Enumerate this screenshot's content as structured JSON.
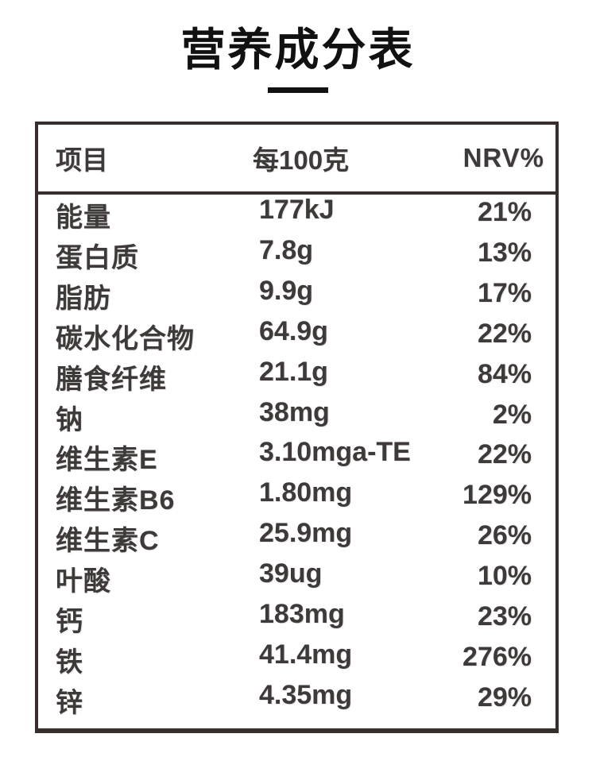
{
  "title": "营养成分表",
  "colors": {
    "text": "#3e3a39",
    "border": "#352e2d",
    "title": "#111111"
  },
  "table": {
    "headers": {
      "item": "项目",
      "per100g": "每100克",
      "nrv": "NRV%"
    },
    "rows": [
      {
        "item": "能量",
        "value": "177kJ",
        "nrv": "21%"
      },
      {
        "item": "蛋白质",
        "value": "7.8g",
        "nrv": "13%"
      },
      {
        "item": "脂肪",
        "value": "9.9g",
        "nrv": "17%"
      },
      {
        "item": "碳水化合物",
        "value": "64.9g",
        "nrv": "22%"
      },
      {
        "item": "膳食纤维",
        "value": "21.1g",
        "nrv": "84%"
      },
      {
        "item": "钠",
        "value": "38mg",
        "nrv": "2%"
      },
      {
        "item": "维生素E",
        "value": "3.10mga-TE",
        "nrv": "22%"
      },
      {
        "item": "维生素B6",
        "value": "1.80mg",
        "nrv": "129%"
      },
      {
        "item": "维生素C",
        "value": "25.9mg",
        "nrv": "26%"
      },
      {
        "item": "叶酸",
        "value": "39ug",
        "nrv": "10%"
      },
      {
        "item": "钙",
        "value": "183mg",
        "nrv": "23%"
      },
      {
        "item": "铁",
        "value": "41.4mg",
        "nrv": "276%"
      },
      {
        "item": "锌",
        "value": "4.35mg",
        "nrv": "29%"
      }
    ]
  }
}
